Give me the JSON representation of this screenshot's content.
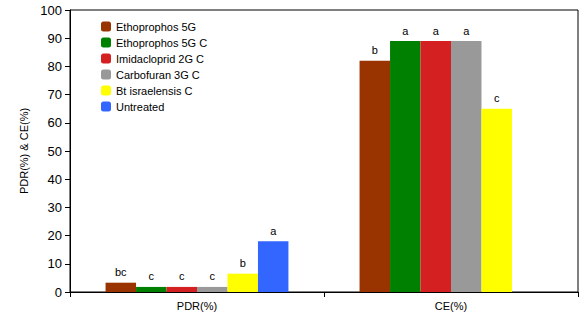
{
  "chart_data": {
    "type": "bar",
    "y_label": "PDR(%) & CE(%)",
    "categories": [
      "PDR(%)",
      "CE(%)"
    ],
    "series": [
      {
        "name": "Ethoprophos 5G",
        "color": "#993300",
        "values": [
          3.3,
          82
        ],
        "significance_letters": [
          "bc",
          "b"
        ]
      },
      {
        "name": "Ethoprophos 5G C",
        "color": "#008000",
        "values": [
          1.8,
          89
        ],
        "significance_letters": [
          "c",
          "a"
        ]
      },
      {
        "name": "Imidacloprid 2G C",
        "color": "#d42020",
        "values": [
          1.8,
          89
        ],
        "significance_letters": [
          "c",
          "a"
        ]
      },
      {
        "name": "Carbofuran 3G C",
        "color": "#999999",
        "values": [
          1.8,
          89
        ],
        "significance_letters": [
          "c",
          "a"
        ]
      },
      {
        "name": "Bt israelensis C",
        "color": "#ffff00",
        "values": [
          6.5,
          65
        ],
        "significance_letters": [
          "b",
          "c"
        ]
      },
      {
        "name": "Untreated",
        "color": "#3366ff",
        "values": [
          18,
          null
        ],
        "significance_letters": [
          "a",
          null
        ]
      }
    ],
    "ylim": [
      0,
      100
    ],
    "yticks": [
      0,
      10,
      20,
      30,
      40,
      50,
      60,
      70,
      80,
      90,
      100
    ],
    "grid": false,
    "legend": "top-left"
  }
}
